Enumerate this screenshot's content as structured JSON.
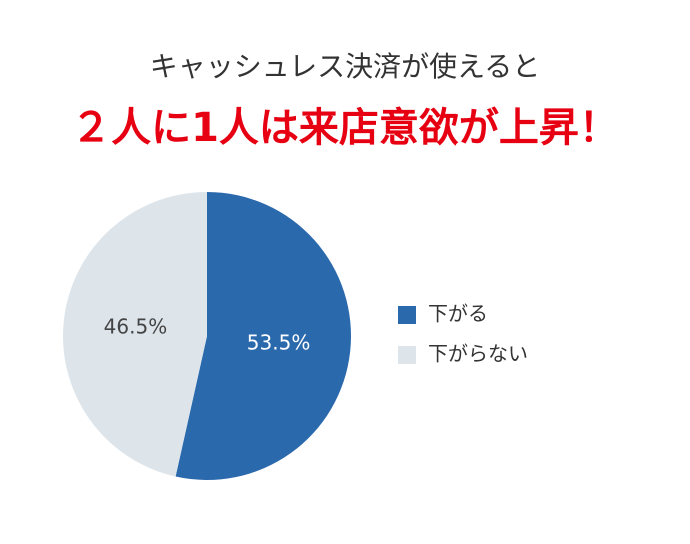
{
  "chart_data": {
    "type": "pie",
    "title": "キャッシュレス決済が使えると",
    "subtitle": "２人に1人は来店意欲が上昇！",
    "categories": [
      "下がる",
      "下がらない"
    ],
    "values": [
      53.5,
      46.5
    ],
    "value_labels": [
      "53.5%",
      "46.5%"
    ],
    "colors": [
      "#2b69ad",
      "#dde5eb"
    ],
    "label_colors": [
      "#ffffff",
      "#444444"
    ],
    "legend": "right"
  }
}
